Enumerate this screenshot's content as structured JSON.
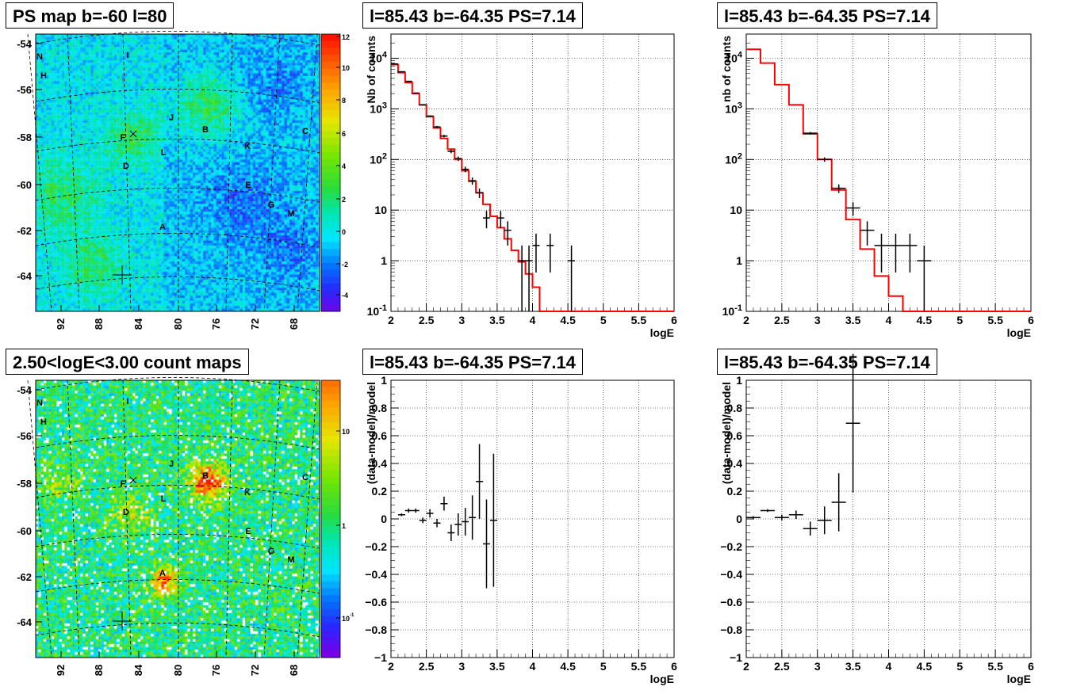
{
  "colors": {
    "red": "#ff0000",
    "black": "#000000",
    "grid": "#000000"
  },
  "titles": {
    "map_top": "PS map b=-60 l=80",
    "map_bottom": "2.50<logE<3.00 count maps",
    "spec_left": "l=85.43 b=-64.35 PS=7.14",
    "spec_right": "l=85.43 b=-64.35 PS=7.14",
    "res_left": "l=85.43 b=-64.35 PS=7.14",
    "res_right": "l=85.43 b=-64.35 PS=7.14"
  },
  "maps": {
    "y_ticks": [
      "-54",
      "-56",
      "-58",
      "-60",
      "-62",
      "-64"
    ],
    "x_ticks": [
      "92",
      "88",
      "84",
      "80",
      "76",
      "72",
      "68"
    ],
    "sources": [
      {
        "name": "N"
      },
      {
        "name": "H"
      },
      {
        "name": "I"
      },
      {
        "name": "J"
      },
      {
        "name": "B"
      },
      {
        "name": "C"
      },
      {
        "name": "F"
      },
      {
        "name": "L"
      },
      {
        "name": "K"
      },
      {
        "name": "D"
      },
      {
        "name": "E"
      },
      {
        "name": "G"
      },
      {
        "name": "M"
      },
      {
        "name": "A"
      }
    ],
    "ps_palette": {
      "tick_labels": [
        "12",
        "10",
        "8",
        "6",
        "4",
        "2",
        "0",
        "-2",
        "-4"
      ]
    },
    "count_palette": {
      "tick_labels": [
        "10",
        "1",
        "10-1"
      ]
    }
  },
  "chart_data": [
    {
      "type": "line",
      "subtype": "histogram",
      "title": "l=85.43 b=-64.35 PS=7.14",
      "xlabel": "logE",
      "ylabel": "Nb of counts",
      "xlim": [
        2,
        6
      ],
      "ylim": [
        0.1,
        30000
      ],
      "log_y": true,
      "grid": true,
      "x_tick_labels": [
        "2",
        "2.5",
        "3",
        "3.5",
        "4",
        "4.5",
        "5",
        "5.5",
        "6"
      ],
      "y_tick_labels": [
        "10-1",
        "1",
        "10",
        "102",
        "103",
        "104"
      ],
      "series": [
        {
          "values": [
            {
              "x": 2.05,
              "y": 7500
            },
            {
              "x": 2.15,
              "y": 5200
            },
            {
              "x": 2.25,
              "y": 3300
            },
            {
              "x": 2.35,
              "y": 2000
            },
            {
              "x": 2.45,
              "y": 1200
            },
            {
              "x": 2.55,
              "y": 700
            },
            {
              "x": 2.65,
              "y": 420
            },
            {
              "x": 2.75,
              "y": 260
            },
            {
              "x": 2.85,
              "y": 160
            },
            {
              "x": 2.95,
              "y": 100
            },
            {
              "x": 3.05,
              "y": 60
            },
            {
              "x": 3.15,
              "y": 37
            },
            {
              "x": 3.25,
              "y": 22
            },
            {
              "x": 3.35,
              "y": 13
            },
            {
              "x": 3.45,
              "y": 7.5
            },
            {
              "x": 3.55,
              "y": 4.5
            },
            {
              "x": 3.65,
              "y": 2.7
            },
            {
              "x": 3.75,
              "y": 1.6
            },
            {
              "x": 3.85,
              "y": 0.95
            },
            {
              "x": 3.95,
              "y": 0.55
            },
            {
              "x": 4.05,
              "y": 0.3
            }
          ]
        },
        {
          "values": [
            {
              "x": 2.05,
              "y": 7700
            },
            {
              "x": 2.15,
              "y": 5400
            },
            {
              "x": 2.25,
              "y": 3500
            },
            {
              "x": 2.35,
              "y": 2050
            },
            {
              "x": 2.45,
              "y": 1200
            },
            {
              "x": 2.55,
              "y": 720
            },
            {
              "x": 2.65,
              "y": 440
            },
            {
              "x": 2.75,
              "y": 290
            },
            {
              "x": 2.85,
              "y": 145
            },
            {
              "x": 2.95,
              "y": 104
            },
            {
              "x": 3.05,
              "y": 64
            },
            {
              "x": 3.15,
              "y": 38
            },
            {
              "x": 3.25,
              "y": 22
            },
            {
              "x": 3.35,
              "y": 7
            },
            {
              "x": 3.55,
              "y": 7
            },
            {
              "x": 3.65,
              "y": 4
            },
            {
              "x": 3.85,
              "y": 1
            },
            {
              "x": 3.95,
              "y": 1
            },
            {
              "x": 4.05,
              "y": 2
            },
            {
              "x": 4.25,
              "y": 2
            },
            {
              "x": 4.55,
              "y": 1
            }
          ]
        }
      ]
    },
    {
      "type": "line",
      "subtype": "histogram",
      "title": "l=85.43 b=-64.35 PS=7.14",
      "xlabel": "logE",
      "ylabel": "nb of counts",
      "xlim": [
        2,
        6
      ],
      "ylim": [
        0.1,
        30000
      ],
      "log_y": true,
      "grid": true,
      "x_tick_labels": [
        "2",
        "2.5",
        "3",
        "3.5",
        "4",
        "4.5",
        "5",
        "5.5",
        "6"
      ],
      "y_tick_labels": [
        "10-1",
        "1",
        "10",
        "102",
        "103",
        "104"
      ],
      "series": [
        {
          "values": [
            {
              "x": 2.1,
              "y": 15000
            },
            {
              "x": 2.3,
              "y": 8000
            },
            {
              "x": 2.5,
              "y": 3000
            },
            {
              "x": 2.7,
              "y": 1200
            },
            {
              "x": 2.9,
              "y": 320
            },
            {
              "x": 3.1,
              "y": 100
            },
            {
              "x": 3.3,
              "y": 25
            },
            {
              "x": 3.5,
              "y": 6.5
            },
            {
              "x": 3.7,
              "y": 1.7
            },
            {
              "x": 3.9,
              "y": 0.5
            },
            {
              "x": 4.1,
              "y": 0.2
            }
          ]
        },
        {
          "values": [
            {
              "x": 2.9,
              "y": 330
            },
            {
              "x": 3.1,
              "y": 100
            },
            {
              "x": 3.3,
              "y": 27
            },
            {
              "x": 3.5,
              "y": 11
            },
            {
              "x": 3.7,
              "y": 4
            },
            {
              "x": 3.9,
              "y": 2
            },
            {
              "x": 4.1,
              "y": 2
            },
            {
              "x": 4.3,
              "y": 2
            },
            {
              "x": 4.5,
              "y": 1
            }
          ]
        }
      ]
    },
    {
      "type": "scatter",
      "title": "l=85.43 b=-64.35 PS=7.14",
      "xlabel": "logE",
      "ylabel": "(data-model)/model",
      "xlim": [
        2,
        6
      ],
      "ylim": [
        -1,
        1
      ],
      "grid": true,
      "x_tick_labels": [
        "2",
        "2.5",
        "3",
        "3.5",
        "4",
        "4.5",
        "5",
        "5.5",
        "6"
      ],
      "y_tick_labels": [
        "-1",
        "-0.8",
        "-0.6",
        "-0.4",
        "-0.2",
        "0",
        "0.2",
        "0.4",
        "0.6",
        "0.8",
        "1"
      ],
      "series": [
        {
          "values": [
            {
              "x": 2.15,
              "y": 0.03,
              "err": 0.01
            },
            {
              "x": 2.25,
              "y": 0.06,
              "err": 0.015
            },
            {
              "x": 2.35,
              "y": 0.06,
              "err": 0.015
            },
            {
              "x": 2.45,
              "y": -0.01,
              "err": 0.02
            },
            {
              "x": 2.55,
              "y": 0.04,
              "err": 0.03
            },
            {
              "x": 2.65,
              "y": -0.03,
              "err": 0.03
            },
            {
              "x": 2.75,
              "y": 0.11,
              "err": 0.05
            },
            {
              "x": 2.85,
              "y": -0.1,
              "err": 0.06
            },
            {
              "x": 2.95,
              "y": -0.04,
              "err": 0.08
            },
            {
              "x": 3.05,
              "y": -0.02,
              "err": 0.1
            },
            {
              "x": 3.15,
              "y": 0.01,
              "err": 0.16
            },
            {
              "x": 3.25,
              "y": 0.27,
              "err": 0.27
            },
            {
              "x": 3.35,
              "y": -0.18,
              "err": 0.32
            },
            {
              "x": 3.45,
              "y": -0.01,
              "err": 0.48
            }
          ]
        }
      ]
    },
    {
      "type": "scatter",
      "title": "l=85.43 b=-64.35 PS=7.14",
      "xlabel": "logE",
      "ylabel": "(data-model)/model",
      "xlim": [
        2,
        6
      ],
      "ylim": [
        -1,
        1
      ],
      "grid": true,
      "x_tick_labels": [
        "2",
        "2.5",
        "3",
        "3.5",
        "4",
        "4.5",
        "5",
        "5.5",
        "6"
      ],
      "y_tick_labels": [
        "-1",
        "-0.8",
        "-0.6",
        "-0.4",
        "-0.2",
        "0",
        "0.2",
        "0.4",
        "0.6",
        "0.8",
        "1"
      ],
      "series": [
        {
          "values": [
            {
              "x": 2.1,
              "y": 0.01,
              "err": 0.01
            },
            {
              "x": 2.3,
              "y": 0.06,
              "err": 0.01
            },
            {
              "x": 2.5,
              "y": 0.01,
              "err": 0.02
            },
            {
              "x": 2.7,
              "y": 0.03,
              "err": 0.03
            },
            {
              "x": 2.9,
              "y": -0.07,
              "err": 0.05
            },
            {
              "x": 3.1,
              "y": -0.01,
              "err": 0.1
            },
            {
              "x": 3.3,
              "y": 0.12,
              "err": 0.21
            },
            {
              "x": 3.5,
              "y": 0.69,
              "err": 0.5
            }
          ]
        }
      ]
    }
  ]
}
